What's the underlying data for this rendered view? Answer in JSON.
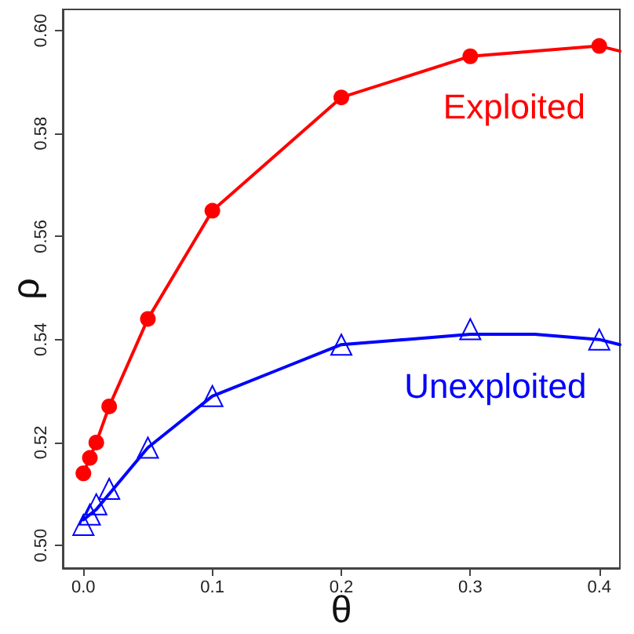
{
  "chart_data": {
    "type": "scatter",
    "xlabel": "θ",
    "ylabel": "ρ",
    "x": [
      0,
      0.005,
      0.01,
      0.02,
      0.05,
      0.1,
      0.2,
      0.3,
      0.4
    ],
    "xlim": [
      -0.016,
      0.416
    ],
    "xticks": [
      {
        "value": 0,
        "label": "0.0"
      },
      0.1,
      0.2,
      0.3,
      0.4
    ],
    "ylim": [
      0.4956,
      0.6041
    ],
    "yticks": [
      {
        "value": 0.5,
        "label": "0.50"
      },
      0.52,
      0.54,
      0.56,
      0.58,
      {
        "value": 0.6,
        "label": "0.60"
      }
    ],
    "series": [
      {
        "type": "line",
        "color": "#ff0000",
        "marker": "none",
        "x": [
          0,
          0.005,
          0.01,
          0.02,
          0.05,
          0.1,
          0.2,
          0.3,
          0.4,
          0.416
        ],
        "values": [
          0.514,
          0.517,
          0.52,
          0.527,
          0.544,
          0.565,
          0.587,
          0.595,
          0.597,
          0.596
        ]
      },
      {
        "type": "line",
        "color": "#0000ff",
        "marker": "none",
        "x": [
          0,
          0.01,
          0.02,
          0.05,
          0.1,
          0.15,
          0.2,
          0.25,
          0.3,
          0.35,
          0.4,
          0.416
        ],
        "values": [
          0.505,
          0.507,
          0.51,
          0.519,
          0.529,
          0.534,
          0.539,
          0.54,
          0.541,
          0.541,
          0.54,
          0.539
        ]
      },
      {
        "name": "Exploited",
        "color": "#ff0000",
        "marker": "circle",
        "values": [
          0.514,
          0.517,
          0.52,
          0.527,
          0.544,
          0.565,
          0.587,
          0.595,
          0.597
        ]
      },
      {
        "name": "Unexploited",
        "color": "#0000ff",
        "marker": "triangle",
        "values": [
          0.504,
          0.506,
          0.508,
          0.511,
          0.519,
          0.529,
          0.539,
          0.542,
          0.54
        ]
      }
    ]
  }
}
